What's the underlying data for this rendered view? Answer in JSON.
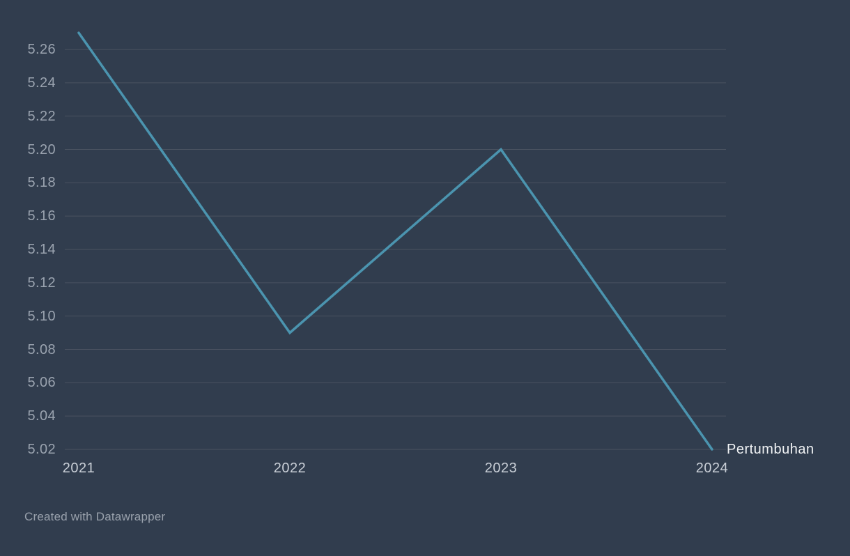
{
  "chart_data": {
    "type": "line",
    "x": [
      "2021",
      "2022",
      "2023",
      "2024"
    ],
    "series": [
      {
        "name": "Pertumbuhan",
        "values": [
          5.27,
          5.09,
          5.2,
          5.02
        ]
      }
    ],
    "title": "",
    "xlabel": "",
    "ylabel": "",
    "y_ticks": [
      "5.26",
      "5.24",
      "5.22",
      "5.20",
      "5.18",
      "5.16",
      "5.14",
      "5.12",
      "5.10",
      "5.08",
      "5.06",
      "5.04",
      "5.02"
    ],
    "y_tick_values": [
      5.26,
      5.24,
      5.22,
      5.2,
      5.18,
      5.16,
      5.14,
      5.12,
      5.1,
      5.08,
      5.06,
      5.04,
      5.02
    ],
    "ylim": [
      5.02,
      5.27
    ],
    "grid": true,
    "legend_position": "end-of-line-label",
    "line_color": "#4B94AF"
  },
  "colors": {
    "background": "#313D4E",
    "gridline": "#4A5260",
    "axis_text": "#9AA3AF",
    "x_axis_text": "#C9CFD7",
    "series_label_text": "#F1F3F5",
    "footer_text": "#99A1AC",
    "line": "#4B94AF"
  },
  "footer": {
    "attribution": "Created with Datawrapper"
  }
}
